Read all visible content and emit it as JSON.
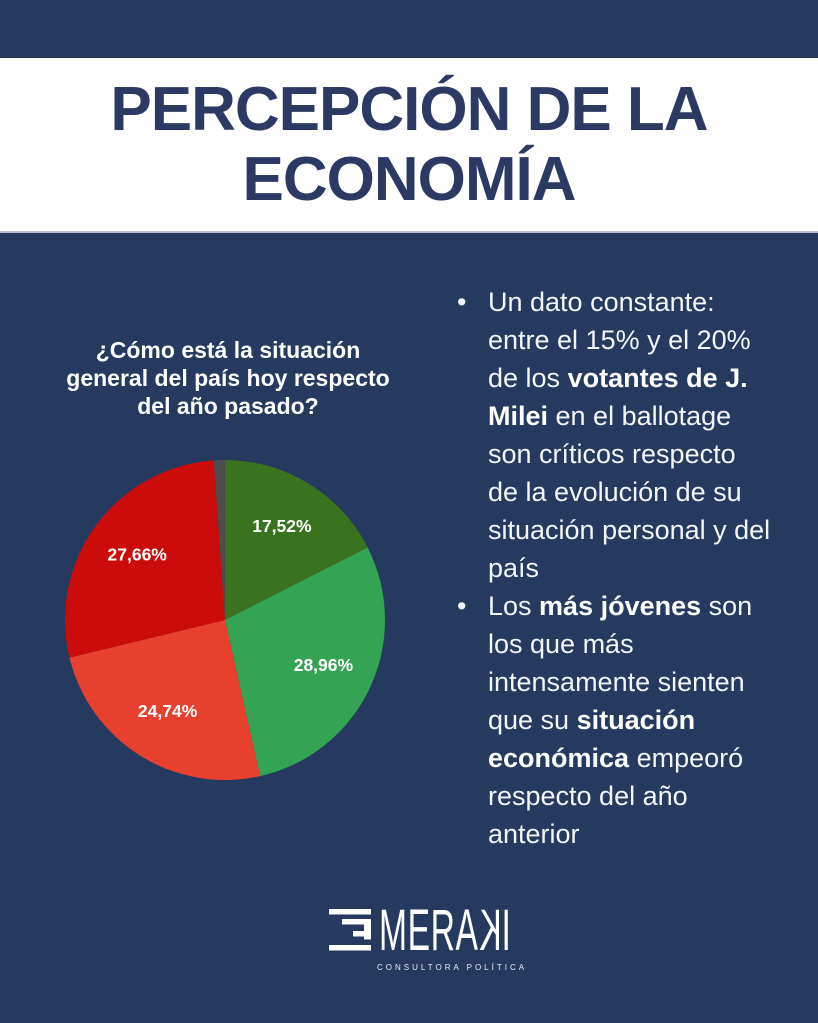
{
  "palette": {
    "background_navy": "#253a5e",
    "title_navy": "#2c3a63",
    "white": "#ffffff",
    "band_border": "#b7bbcb"
  },
  "header": {
    "title_lines": [
      "PERCEPCIÓN DE LA",
      "ECONOMÍA"
    ]
  },
  "question_lines": [
    "¿Cómo está la situación",
    "general del país hoy respecto",
    "del año pasado?"
  ],
  "chart_data": {
    "type": "pie",
    "title": "¿Cómo está la situación general del país hoy respecto del año pasado?",
    "direction": "clockwise",
    "start_angle_deg_from_12": 0,
    "label_color": "#ffffff",
    "label_radius_fraction": 0.68,
    "slices": [
      {
        "label": "17,52%",
        "value": 17.52,
        "color": "#3a7320"
      },
      {
        "label": "28,96%",
        "value": 28.96,
        "color": "#34a353"
      },
      {
        "label": "24,74%",
        "value": 24.74,
        "color": "#e8402f"
      },
      {
        "label": "27,66%",
        "value": 27.66,
        "color": "#cc0b0b"
      },
      {
        "label": "",
        "value": 1.12,
        "color": "#4d4d4d"
      }
    ]
  },
  "bullets": [
    {
      "segments": [
        {
          "text": "Un dato constante: entre el 15% y el 20% de los ",
          "bold": false
        },
        {
          "text": "votantes de J. Milei",
          "bold": true
        },
        {
          "text": " en el ballotage son críticos respecto de la evolución de su situación personal y del país",
          "bold": false
        }
      ]
    },
    {
      "segments": [
        {
          "text": "Los ",
          "bold": false
        },
        {
          "text": "más jóvenes",
          "bold": true
        },
        {
          "text": " son los que más intensamente sienten que su ",
          "bold": false
        },
        {
          "text": "situación económica",
          "bold": true
        },
        {
          "text": " empeoró respecto del año anterior",
          "bold": false
        }
      ]
    }
  ],
  "footer": {
    "brand_pre": "MERA",
    "brand_mirrored_letter": "K",
    "brand_post": "I",
    "tagline": "CONSULTORA POLÍTICA"
  }
}
